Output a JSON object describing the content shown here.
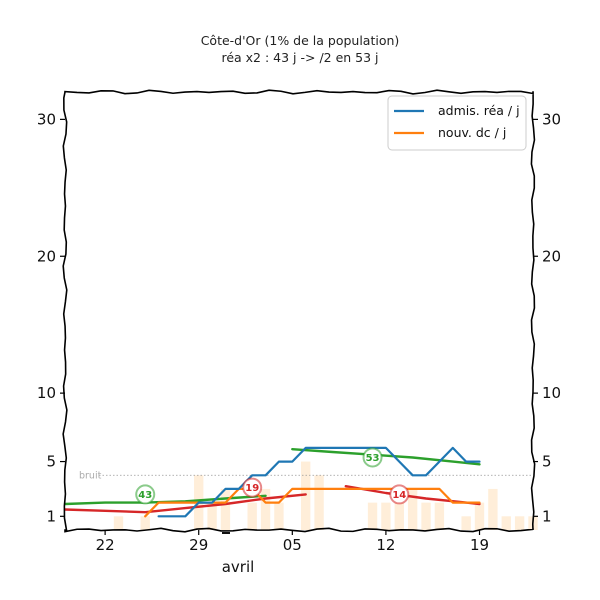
{
  "chart_data": {
    "type": "line",
    "title": "Côte-d'Or (1% de la population)",
    "subtitle": "réa x2 : 43 j -> /2 en 53 j",
    "xlabel": "avril",
    "ylabel": "",
    "ylim": [
      0,
      32
    ],
    "x_range": [
      "2020-03-19",
      "2020-04-23"
    ],
    "y_ticks": [
      1,
      5,
      10,
      20,
      30
    ],
    "y_tick_labels": [
      "1",
      "5",
      "10",
      "20",
      "30"
    ],
    "x_ticks": [
      "2020-03-22",
      "2020-03-29",
      "2020-04-05",
      "2020-04-12",
      "2020-04-19"
    ],
    "x_tick_labels": [
      "22",
      "29",
      "05",
      "12",
      "19"
    ],
    "grid": false,
    "legend_position": "top-right",
    "colors": {
      "admissions": "#1f77b4",
      "deaths": "#ff7f0e",
      "trend_green": "#2ca02c",
      "trend_red": "#d62728",
      "bars": "#ffe8cc",
      "noise": "#999999"
    },
    "noise": {
      "label": "bruit",
      "value": 4.0
    },
    "series": [
      {
        "name": "admis. réa / j",
        "x": [
          "2020-03-26",
          "2020-03-27",
          "2020-03-28",
          "2020-03-29",
          "2020-03-30",
          "2020-03-31",
          "2020-04-01",
          "2020-04-02",
          "2020-04-03",
          "2020-04-04",
          "2020-04-05",
          "2020-04-06",
          "2020-04-07",
          "2020-04-08",
          "2020-04-09",
          "2020-04-10",
          "2020-04-11",
          "2020-04-12",
          "2020-04-13",
          "2020-04-14",
          "2020-04-15",
          "2020-04-16",
          "2020-04-17",
          "2020-04-18",
          "2020-04-19"
        ],
        "values": [
          1,
          1,
          1,
          2,
          2,
          3,
          3,
          4,
          4,
          5,
          5,
          6,
          6,
          6,
          6,
          6,
          6,
          6,
          5,
          4,
          4,
          5,
          6,
          5,
          5
        ]
      },
      {
        "name": "nouv. dc / j",
        "x": [
          "2020-03-25",
          "2020-03-26",
          "2020-03-27",
          "2020-03-28",
          "2020-03-29",
          "2020-03-30",
          "2020-03-31",
          "2020-04-01",
          "2020-04-02",
          "2020-04-03",
          "2020-04-04",
          "2020-04-05",
          "2020-04-06",
          "2020-04-07",
          "2020-04-08",
          "2020-04-09",
          "2020-04-10",
          "2020-04-11",
          "2020-04-12",
          "2020-04-13",
          "2020-04-14",
          "2020-04-15",
          "2020-04-16",
          "2020-04-17",
          "2020-04-18",
          "2020-04-19"
        ],
        "values": [
          1,
          2,
          2,
          2,
          2,
          2,
          2,
          3,
          3,
          2,
          2,
          3,
          3,
          3,
          3,
          3,
          3,
          3,
          3,
          3,
          3,
          3,
          3,
          2,
          2,
          2
        ]
      }
    ],
    "trend_lines": [
      {
        "color": "green",
        "x": [
          "2020-03-19",
          "2020-03-22",
          "2020-03-25",
          "2020-03-28",
          "2020-03-31",
          "2020-04-03"
        ],
        "values": [
          1.9,
          2.0,
          2.0,
          2.1,
          2.3,
          2.5
        ]
      },
      {
        "color": "green",
        "x": [
          "2020-04-05",
          "2020-04-08",
          "2020-04-11",
          "2020-04-14",
          "2020-04-17",
          "2020-04-19"
        ],
        "values": [
          5.9,
          5.7,
          5.5,
          5.3,
          5.0,
          4.8
        ]
      },
      {
        "color": "red",
        "x": [
          "2020-03-19",
          "2020-03-22",
          "2020-03-25",
          "2020-03-28",
          "2020-03-31",
          "2020-04-03",
          "2020-04-06"
        ],
        "values": [
          1.5,
          1.4,
          1.3,
          1.6,
          1.9,
          2.3,
          2.6
        ]
      },
      {
        "color": "red",
        "x": [
          "2020-04-09",
          "2020-04-12",
          "2020-04-15",
          "2020-04-18",
          "2020-04-19"
        ],
        "values": [
          3.2,
          2.7,
          2.3,
          2.0,
          1.9
        ]
      }
    ],
    "annotations": [
      {
        "text": "43",
        "color": "green",
        "x": "2020-03-25",
        "y": 2.6
      },
      {
        "text": "19",
        "color": "red",
        "x": "2020-04-02",
        "y": 3.1
      },
      {
        "text": "53",
        "color": "green",
        "x": "2020-04-11",
        "y": 5.3
      },
      {
        "text": "14",
        "color": "red",
        "x": "2020-04-13",
        "y": 2.6
      }
    ],
    "bars": {
      "x_start": "2020-03-19",
      "values": [
        0,
        0,
        0,
        0,
        1,
        0,
        1,
        0,
        0,
        0,
        4,
        2,
        3,
        0,
        2,
        3,
        2,
        0,
        5,
        4,
        0,
        0,
        0,
        2,
        2,
        3,
        3,
        2,
        2,
        0,
        1,
        2,
        3,
        1,
        1,
        1,
        0,
        0,
        0
      ]
    }
  }
}
